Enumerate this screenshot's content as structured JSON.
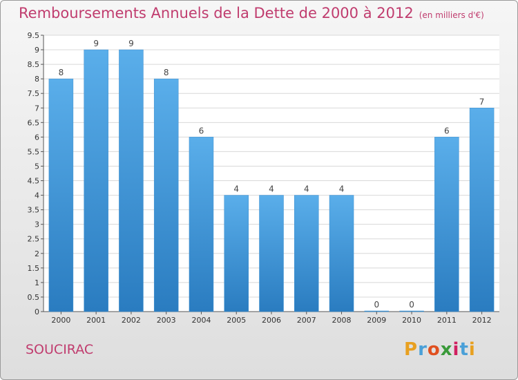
{
  "header": {
    "title": "Remboursements Annuels de la Dette de 2000 à 2012",
    "subtitle": "(en milliers d'€)"
  },
  "footer": {
    "commune": "SOUCIRAC",
    "brand_letters": [
      "P",
      "r",
      "o",
      "x",
      "i",
      "t",
      "i"
    ],
    "brand_colors": [
      "#e8a020",
      "#4aa0d8",
      "#e05020",
      "#3a9a3a",
      "#d02060",
      "#4aa0d8",
      "#e8a020"
    ]
  },
  "chart_data": {
    "type": "bar",
    "title": "Remboursements Annuels de la Dette de 2000 à 2012",
    "subtitle": "(en milliers d'€)",
    "categories": [
      "2000",
      "2001",
      "2002",
      "2003",
      "2004",
      "2005",
      "2006",
      "2007",
      "2008",
      "2009",
      "2010",
      "2011",
      "2012"
    ],
    "values": [
      8,
      9,
      9,
      8,
      6,
      4,
      4,
      4,
      4,
      0,
      0,
      6,
      7
    ],
    "y_ticks": [
      "0",
      "0.5",
      "1",
      "1.5",
      "2",
      "2.5",
      "3",
      "3.5",
      "4",
      "4.5",
      "5",
      "5.5",
      "6",
      "6.5",
      "7",
      "7.5",
      "8",
      "8.5",
      "9",
      "9.5"
    ],
    "ylim": [
      0,
      9.5
    ],
    "grid": true,
    "bar_color": "#4a9fdc",
    "xlabel": "",
    "ylabel": ""
  }
}
